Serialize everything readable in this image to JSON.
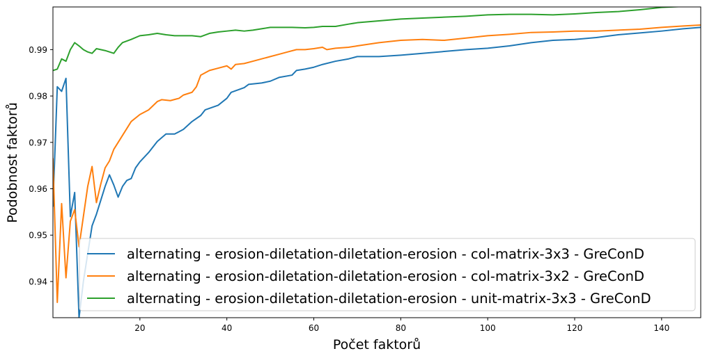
{
  "chart_data": {
    "type": "line",
    "title": "",
    "xlabel": "Počet faktorů",
    "ylabel": "Podobnost faktorů",
    "xlim": [
      0,
      149
    ],
    "ylim": [
      0.9322,
      0.9992
    ],
    "xticks": [
      20,
      40,
      60,
      80,
      100,
      120,
      140
    ],
    "yticks": [
      0.94,
      0.95,
      0.96,
      0.97,
      0.98,
      0.99
    ],
    "ytick_labels": [
      "0.94",
      "0.95",
      "0.96",
      "0.97",
      "0.98",
      "0.99"
    ],
    "grid": false,
    "legend_position": "bottom-right",
    "series": [
      {
        "name": "alternating - erosion-diletation-diletation-erosion - col-matrix-3x3 - GreConD",
        "color": "#1f77b4",
        "points": [
          [
            0,
            0.9562
          ],
          [
            1,
            0.982
          ],
          [
            2,
            0.981
          ],
          [
            3,
            0.9838
          ],
          [
            4,
            0.954
          ],
          [
            5,
            0.9592
          ],
          [
            6,
            0.9322
          ],
          [
            7,
            0.94
          ],
          [
            8,
            0.946
          ],
          [
            9,
            0.952
          ],
          [
            10,
            0.9545
          ],
          [
            11,
            0.9575
          ],
          [
            12,
            0.9605
          ],
          [
            13,
            0.963
          ],
          [
            14,
            0.9608
          ],
          [
            15,
            0.9582
          ],
          [
            16,
            0.9605
          ],
          [
            17,
            0.9618
          ],
          [
            18,
            0.9622
          ],
          [
            19,
            0.9645
          ],
          [
            20,
            0.9658
          ],
          [
            22,
            0.9678
          ],
          [
            24,
            0.9702
          ],
          [
            26,
            0.9718
          ],
          [
            28,
            0.9718
          ],
          [
            30,
            0.9728
          ],
          [
            32,
            0.9745
          ],
          [
            34,
            0.9758
          ],
          [
            35,
            0.977
          ],
          [
            38,
            0.978
          ],
          [
            40,
            0.9795
          ],
          [
            41,
            0.9808
          ],
          [
            44,
            0.9818
          ],
          [
            45,
            0.9825
          ],
          [
            48,
            0.9828
          ],
          [
            50,
            0.9832
          ],
          [
            52,
            0.984
          ],
          [
            55,
            0.9845
          ],
          [
            56,
            0.9855
          ],
          [
            58,
            0.9858
          ],
          [
            60,
            0.9862
          ],
          [
            62,
            0.9868
          ],
          [
            65,
            0.9875
          ],
          [
            68,
            0.988
          ],
          [
            70,
            0.9885
          ],
          [
            75,
            0.9885
          ],
          [
            80,
            0.9888
          ],
          [
            85,
            0.9892
          ],
          [
            90,
            0.9896
          ],
          [
            95,
            0.99
          ],
          [
            100,
            0.9903
          ],
          [
            105,
            0.9908
          ],
          [
            110,
            0.9915
          ],
          [
            115,
            0.992
          ],
          [
            120,
            0.9922
          ],
          [
            125,
            0.9926
          ],
          [
            130,
            0.9932
          ],
          [
            135,
            0.9936
          ],
          [
            140,
            0.994
          ],
          [
            145,
            0.9945
          ],
          [
            149,
            0.9948
          ]
        ]
      },
      {
        "name": "alternating - erosion-diletation-diletation-erosion - col-matrix-3x2 - GreConD",
        "color": "#ff7f0e",
        "points": [
          [
            0,
            0.9665
          ],
          [
            1,
            0.9355
          ],
          [
            2,
            0.9568
          ],
          [
            3,
            0.9408
          ],
          [
            4,
            0.953
          ],
          [
            5,
            0.9555
          ],
          [
            6,
            0.9475
          ],
          [
            7,
            0.954
          ],
          [
            8,
            0.9605
          ],
          [
            9,
            0.9648
          ],
          [
            10,
            0.957
          ],
          [
            11,
            0.961
          ],
          [
            12,
            0.9645
          ],
          [
            13,
            0.966
          ],
          [
            14,
            0.9685
          ],
          [
            16,
            0.9715
          ],
          [
            18,
            0.9745
          ],
          [
            20,
            0.976
          ],
          [
            22,
            0.977
          ],
          [
            24,
            0.9788
          ],
          [
            25,
            0.9792
          ],
          [
            27,
            0.979
          ],
          [
            29,
            0.9795
          ],
          [
            30,
            0.9802
          ],
          [
            32,
            0.9808
          ],
          [
            33,
            0.982
          ],
          [
            34,
            0.9845
          ],
          [
            36,
            0.9855
          ],
          [
            38,
            0.986
          ],
          [
            40,
            0.9865
          ],
          [
            41,
            0.9858
          ],
          [
            42,
            0.9868
          ],
          [
            44,
            0.987
          ],
          [
            46,
            0.9875
          ],
          [
            48,
            0.988
          ],
          [
            50,
            0.9885
          ],
          [
            52,
            0.989
          ],
          [
            54,
            0.9895
          ],
          [
            56,
            0.99
          ],
          [
            58,
            0.99
          ],
          [
            60,
            0.9902
          ],
          [
            62,
            0.9905
          ],
          [
            63,
            0.99
          ],
          [
            65,
            0.9903
          ],
          [
            68,
            0.9905
          ],
          [
            70,
            0.9908
          ],
          [
            75,
            0.9915
          ],
          [
            80,
            0.992
          ],
          [
            85,
            0.9922
          ],
          [
            90,
            0.992
          ],
          [
            95,
            0.9925
          ],
          [
            100,
            0.993
          ],
          [
            105,
            0.9933
          ],
          [
            110,
            0.9937
          ],
          [
            115,
            0.9938
          ],
          [
            120,
            0.994
          ],
          [
            125,
            0.994
          ],
          [
            130,
            0.9942
          ],
          [
            135,
            0.9944
          ],
          [
            140,
            0.9948
          ],
          [
            145,
            0.9951
          ],
          [
            149,
            0.9953
          ]
        ]
      },
      {
        "name": "alternating - erosion-diletation-diletation-erosion - unit-matrix-3x3 - GreConD",
        "color": "#2ca02c",
        "points": [
          [
            0,
            0.9855
          ],
          [
            1,
            0.9858
          ],
          [
            2,
            0.988
          ],
          [
            3,
            0.9875
          ],
          [
            4,
            0.99
          ],
          [
            5,
            0.9915
          ],
          [
            6,
            0.9908
          ],
          [
            7,
            0.99
          ],
          [
            8,
            0.9895
          ],
          [
            9,
            0.9892
          ],
          [
            10,
            0.9902
          ],
          [
            12,
            0.9898
          ],
          [
            14,
            0.9892
          ],
          [
            15,
            0.9905
          ],
          [
            16,
            0.9915
          ],
          [
            18,
            0.9922
          ],
          [
            20,
            0.993
          ],
          [
            22,
            0.9932
          ],
          [
            24,
            0.9935
          ],
          [
            26,
            0.9932
          ],
          [
            28,
            0.993
          ],
          [
            30,
            0.993
          ],
          [
            32,
            0.993
          ],
          [
            34,
            0.9928
          ],
          [
            36,
            0.9935
          ],
          [
            38,
            0.9938
          ],
          [
            40,
            0.994
          ],
          [
            42,
            0.9942
          ],
          [
            44,
            0.994
          ],
          [
            46,
            0.9942
          ],
          [
            48,
            0.9945
          ],
          [
            50,
            0.9948
          ],
          [
            52,
            0.9948
          ],
          [
            55,
            0.9948
          ],
          [
            58,
            0.9947
          ],
          [
            60,
            0.9948
          ],
          [
            62,
            0.995
          ],
          [
            65,
            0.995
          ],
          [
            68,
            0.9955
          ],
          [
            70,
            0.9958
          ],
          [
            75,
            0.9962
          ],
          [
            80,
            0.9966
          ],
          [
            85,
            0.9968
          ],
          [
            90,
            0.997
          ],
          [
            95,
            0.9972
          ],
          [
            100,
            0.9975
          ],
          [
            105,
            0.9976
          ],
          [
            110,
            0.9976
          ],
          [
            115,
            0.9975
          ],
          [
            120,
            0.9977
          ],
          [
            125,
            0.998
          ],
          [
            130,
            0.9982
          ],
          [
            135,
            0.9986
          ],
          [
            140,
            0.9991
          ],
          [
            149,
            0.9995
          ]
        ]
      }
    ]
  }
}
